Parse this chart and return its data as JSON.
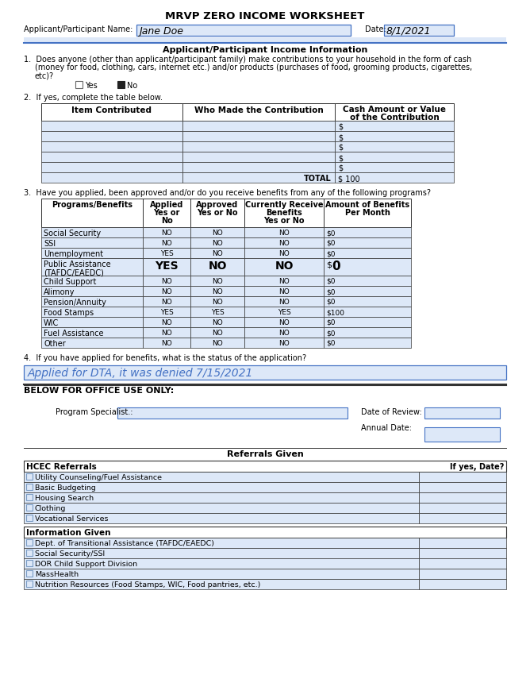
{
  "title": "MRVP ZERO INCOME WORKSHEET",
  "applicant_name": "Jane Doe",
  "date": "8/1/2021",
  "bg_color": "#ffffff",
  "field_bg": "#dde8f8",
  "dark_border": "#4472c4",
  "text_color": "#000000",
  "blue_text": "#4472c4",
  "section_header": "Applicant/Participant Income Information",
  "q1_text": "Does anyone (other than applicant/participant family) make contributions to your household in the form of cash\n(money for food, clothing, cars, internet etc.) and/or products (purchases of food, grooming products, cigarettes,\netc)?",
  "q2_text": "If yes, complete the table below.",
  "contrib_headers": [
    "Item Contributed",
    "Who Made the Contribution",
    "Cash Amount or Value\nof the Contribution"
  ],
  "contrib_rows": 5,
  "contrib_total": "100",
  "q3_text": "Have you applied, been approved and/or do you receive benefits from any of the following programs?",
  "benefits_headers": [
    "Programs/Benefits",
    "Applied\nYes or\nNo",
    "Approved\nYes or No",
    "Currently Receive\nBenefits\nYes or No",
    "Amount of Benefits\nPer Month"
  ],
  "benefits_rows": [
    [
      "Social Security",
      "NO",
      "NO",
      "NO",
      "0"
    ],
    [
      "SSI",
      "NO",
      "NO",
      "NO",
      "0"
    ],
    [
      "Unemployment",
      "YES",
      "NO",
      "NO",
      "0"
    ],
    [
      "Public Assistance\n(TAFDC/EAEDC)",
      "YES",
      "NO",
      "NO",
      "0"
    ],
    [
      "Child Support",
      "NO",
      "NO",
      "NO",
      "0"
    ],
    [
      "Alimony",
      "NO",
      "NO",
      "NO",
      "0"
    ],
    [
      "Pension/Annuity",
      "NO",
      "NO",
      "NO",
      "0"
    ],
    [
      "Food Stamps",
      "YES",
      "YES",
      "YES",
      "100"
    ],
    [
      "WIC",
      "NO",
      "NO",
      "NO",
      "0"
    ],
    [
      "Fuel Assistance",
      "NO",
      "NO",
      "NO",
      "0"
    ],
    [
      "Other",
      "NO",
      "NO",
      "NO",
      "0"
    ]
  ],
  "q4_text": "If you have applied for benefits, what is the status of the application?",
  "q4_answer": "Applied for DTA, it was denied 7/15/2021",
  "office_header": "BELOW FOR OFFICE USE ONLY:",
  "program_specialist_label": "Program Specialist.:",
  "date_of_review_label": "Date of Review:",
  "annual_date_label": "Annual Date:",
  "referrals_header": "Referrals Given",
  "hcec_label": "HCEC Referrals",
  "if_yes_date": "If yes, Date?",
  "hcec_items": [
    "Utility Counseling/Fuel Assistance",
    "Basic Budgeting",
    "Housing Search",
    "Clothing",
    "Vocational Services"
  ],
  "info_label": "Information Given",
  "info_items": [
    "Dept. of Transitional Assistance (TAFDC/EAEDC)",
    "Social Security/SSI",
    "DOR Child Support Division",
    "MassHealth",
    "Nutrition Resources (Food Stamps, WIC, Food pantries, etc.)"
  ]
}
